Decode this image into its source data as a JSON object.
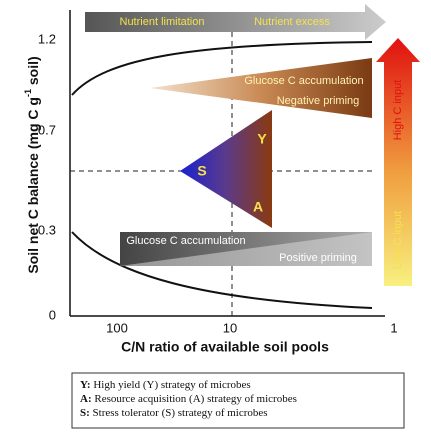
{
  "axes": {
    "y_label": [
      "Soil net C balance (mg C g",
      "-1",
      " soil)"
    ],
    "x_label": "C/N ratio of available soil pools",
    "y_ticks": [
      "1.2",
      "0.7",
      "0.3",
      "0"
    ],
    "x_ticks": [
      "100",
      "10",
      "1"
    ]
  },
  "top_arrow": [
    "Nutrient limitation",
    "Nutrient excess"
  ],
  "upper_wedge": [
    "Glucose C accumulation",
    "Negative priming"
  ],
  "lower_wedge": [
    "Glucose C accumulation",
    "Positive priming"
  ],
  "triangle": {
    "s": "S",
    "y": "Y",
    "a": "A"
  },
  "side_arrow": {
    "high": "High C input",
    "low": "Low C input"
  },
  "legend": [
    [
      "Y:",
      " High yield (Y) strategy of microbes"
    ],
    [
      "A:",
      " Resource acquisition (A) strategy of microbes"
    ],
    [
      "S:",
      " Stress tolerator (S) strategy of microbes"
    ]
  ]
}
